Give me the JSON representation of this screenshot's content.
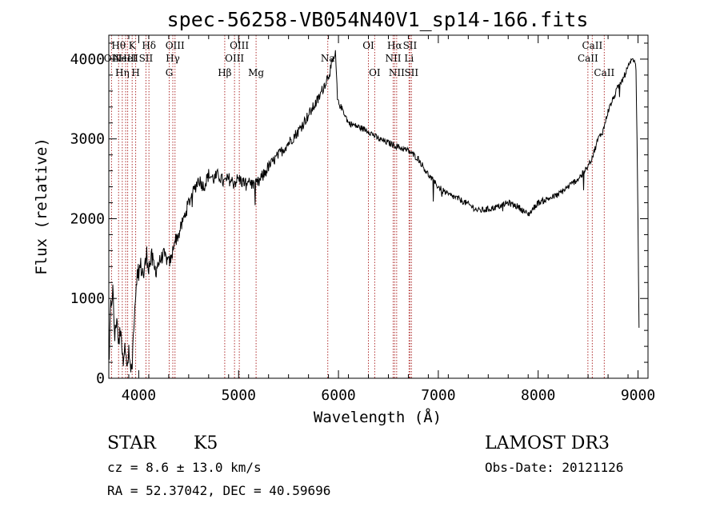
{
  "chart_data": {
    "type": "line",
    "title": "spec-56258-VB054N40V1_sp14-166.fits",
    "xlabel": "Wavelength (Å)",
    "ylabel": "Flux (relative)",
    "xlim": [
      3700,
      9100
    ],
    "ylim": [
      0,
      4300
    ],
    "xticks": [
      4000,
      5000,
      6000,
      7000,
      8000,
      9000
    ],
    "yticks": [
      0,
      1000,
      2000,
      3000,
      4000
    ],
    "xtick_labels": [
      "4000",
      "5000",
      "6000",
      "7000",
      "8000",
      "9000"
    ],
    "ytick_labels": [
      "0",
      "1000",
      "2000",
      "3000",
      "4000"
    ],
    "series": [
      {
        "color": "#000000",
        "anchors": [
          [
            3700,
            200
          ],
          [
            3720,
            900
          ],
          [
            3740,
            1100
          ],
          [
            3760,
            500
          ],
          [
            3780,
            800
          ],
          [
            3800,
            400
          ],
          [
            3820,
            700
          ],
          [
            3840,
            200
          ],
          [
            3860,
            500
          ],
          [
            3880,
            100
          ],
          [
            3900,
            300
          ],
          [
            3920,
            100
          ],
          [
            3935,
            200
          ],
          [
            3950,
            700
          ],
          [
            3965,
            1000
          ],
          [
            3980,
            1300
          ],
          [
            4000,
            1350
          ],
          [
            4020,
            1400
          ],
          [
            4050,
            1300
          ],
          [
            4080,
            1550
          ],
          [
            4100,
            1400
          ],
          [
            4130,
            1500
          ],
          [
            4160,
            1350
          ],
          [
            4200,
            1450
          ],
          [
            4250,
            1550
          ],
          [
            4300,
            1450
          ],
          [
            4330,
            1500
          ],
          [
            4350,
            1700
          ],
          [
            4400,
            1800
          ],
          [
            4450,
            2000
          ],
          [
            4500,
            2200
          ],
          [
            4550,
            2350
          ],
          [
            4600,
            2500
          ],
          [
            4650,
            2400
          ],
          [
            4700,
            2550
          ],
          [
            4750,
            2500
          ],
          [
            4800,
            2550
          ],
          [
            4850,
            2450
          ],
          [
            4900,
            2500
          ],
          [
            4950,
            2450
          ],
          [
            5000,
            2500
          ],
          [
            5050,
            2450
          ],
          [
            5100,
            2500
          ],
          [
            5150,
            2400
          ],
          [
            5200,
            2450
          ],
          [
            5250,
            2550
          ],
          [
            5300,
            2650
          ],
          [
            5400,
            2800
          ],
          [
            5500,
            2950
          ],
          [
            5600,
            3100
          ],
          [
            5700,
            3300
          ],
          [
            5800,
            3500
          ],
          [
            5850,
            3650
          ],
          [
            5900,
            3800
          ],
          [
            5940,
            3950
          ],
          [
            5970,
            4050
          ],
          [
            5990,
            3500
          ],
          [
            6000,
            3450
          ],
          [
            6050,
            3350
          ],
          [
            6100,
            3200
          ],
          [
            6200,
            3150
          ],
          [
            6300,
            3100
          ],
          [
            6400,
            3000
          ],
          [
            6500,
            2950
          ],
          [
            6600,
            2900
          ],
          [
            6700,
            2850
          ],
          [
            6800,
            2750
          ],
          [
            6900,
            2550
          ],
          [
            7000,
            2400
          ],
          [
            7100,
            2300
          ],
          [
            7200,
            2250
          ],
          [
            7300,
            2180
          ],
          [
            7400,
            2100
          ],
          [
            7500,
            2120
          ],
          [
            7600,
            2150
          ],
          [
            7700,
            2200
          ],
          [
            7800,
            2150
          ],
          [
            7900,
            2050
          ],
          [
            8000,
            2200
          ],
          [
            8100,
            2250
          ],
          [
            8200,
            2300
          ],
          [
            8300,
            2400
          ],
          [
            8400,
            2500
          ],
          [
            8500,
            2650
          ],
          [
            8550,
            2800
          ],
          [
            8600,
            3000
          ],
          [
            8650,
            3100
          ],
          [
            8700,
            3350
          ],
          [
            8750,
            3500
          ],
          [
            8800,
            3650
          ],
          [
            8850,
            3750
          ],
          [
            8900,
            3900
          ],
          [
            8950,
            4000
          ],
          [
            8980,
            3900
          ],
          [
            9000,
            2000
          ],
          [
            9010,
            600
          ]
        ]
      }
    ],
    "spectral_lines": [
      {
        "wavelength": 3727,
        "label": "OII",
        "row": 2
      },
      {
        "wavelength": 3798,
        "label": "H$\\theta$",
        "row": 1
      },
      {
        "wavelength": 3835,
        "label": "H$\\eta$",
        "row": 3
      },
      {
        "wavelength": 3869,
        "label": "NeIII",
        "row": 2
      },
      {
        "wavelength": 3889,
        "label": "HeI",
        "row": 2
      },
      {
        "wavelength": 3934,
        "label": "K",
        "row": 1
      },
      {
        "wavelength": 3969,
        "label": "H",
        "row": 3
      },
      {
        "wavelength": 4072,
        "label": "SII",
        "row": 2
      },
      {
        "wavelength": 4102,
        "label": "H$\\delta$",
        "row": 1
      },
      {
        "wavelength": 4305,
        "label": "G",
        "row": 3
      },
      {
        "wavelength": 4341,
        "label": "H$\\gamma$",
        "row": 2
      },
      {
        "wavelength": 4363,
        "label": "OIII",
        "row": 1
      },
      {
        "wavelength": 4861,
        "label": "H$\\beta$",
        "row": 3
      },
      {
        "wavelength": 4959,
        "label": "OIII",
        "row": 2
      },
      {
        "wavelength": 5007,
        "label": "OIII",
        "row": 1
      },
      {
        "wavelength": 5175,
        "label": "Mg",
        "row": 3
      },
      {
        "wavelength": 5893,
        "label": "Na",
        "row": 2
      },
      {
        "wavelength": 6300,
        "label": "OI",
        "row": 1
      },
      {
        "wavelength": 6363,
        "label": "OI",
        "row": 3
      },
      {
        "wavelength": 6548,
        "label": "NII",
        "row": 2
      },
      {
        "wavelength": 6563,
        "label": "H$\\alpha$",
        "row": 1
      },
      {
        "wavelength": 6583,
        "label": "NII",
        "row": 3
      },
      {
        "wavelength": 6707,
        "label": "Li",
        "row": 2
      },
      {
        "wavelength": 6716,
        "label": "SII",
        "row": 1
      },
      {
        "wavelength": 6731,
        "label": "SII",
        "row": 3
      },
      {
        "wavelength": 8498,
        "label": "CaII",
        "row": 2
      },
      {
        "wavelength": 8542,
        "label": "CaII",
        "row": 1
      },
      {
        "wavelength": 8662,
        "label": "CaII",
        "row": 3
      }
    ]
  },
  "info": {
    "object_class": "STAR",
    "subclass": "K5",
    "survey": "LAMOST DR3",
    "redshift_line": "cz = 8.6 ± 13.0 km/s",
    "obs_date": "Obs-Date: 20121126",
    "coords": "RA =  52.37042, DEC =  40.59696"
  }
}
